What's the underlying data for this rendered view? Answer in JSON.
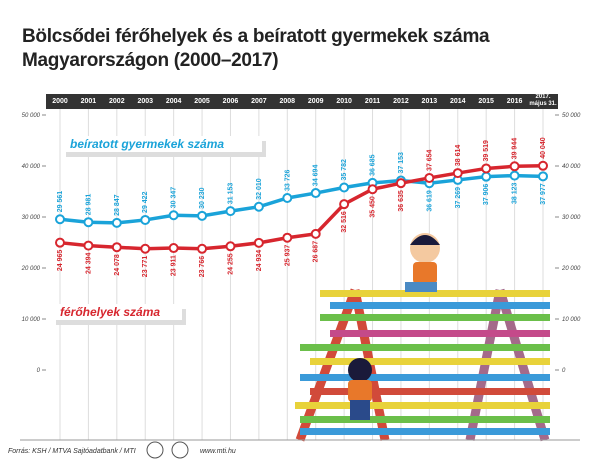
{
  "chart_data": {
    "type": "line",
    "title": "Bölcsődei férőhelyek és a beíratott gyermekek száma",
    "subtitle": "Magyarországon (2000–2017)",
    "categories": [
      "2000",
      "2001",
      "2002",
      "2003",
      "2004",
      "2005",
      "2006",
      "2007",
      "2008",
      "2009",
      "2010",
      "2011",
      "2012",
      "2013",
      "2014",
      "2015",
      "2016",
      "2017. május 31."
    ],
    "series": [
      {
        "name": "beíratott gyermekek száma",
        "color": "#1aa3d9",
        "values": [
          29561,
          28981,
          28847,
          29422,
          30347,
          30230,
          31153,
          32010,
          33726,
          34694,
          35782,
          36685,
          37153,
          36619,
          37269,
          37906,
          38123,
          37977
        ],
        "value_labels": [
          "29 561",
          "28 981",
          "28 847",
          "29 422",
          "30 347",
          "30 230",
          "31 153",
          "32 010",
          "33 726",
          "34 694",
          "35 782",
          "36 685",
          "37 153",
          "36 619",
          "37 269",
          "37 906",
          "38 123",
          "37 977"
        ]
      },
      {
        "name": "férőhelyek száma",
        "color": "#d7262e",
        "values": [
          24965,
          24394,
          24078,
          23771,
          23911,
          23766,
          24255,
          24934,
          25937,
          26687,
          32516,
          35450,
          36635,
          37654,
          38614,
          39519,
          39944,
          40040
        ],
        "value_labels": [
          "24 965",
          "24 394",
          "24 078",
          "23 771",
          "23 911",
          "23 766",
          "24 255",
          "24 934",
          "25 937",
          "26 687",
          "32 516",
          "35 450",
          "36 635",
          "37 654",
          "38 614",
          "39 519",
          "39 944",
          "40 040"
        ]
      }
    ],
    "ylim": [
      0,
      50000
    ],
    "yticks": [
      0,
      {
        "value": 10000,
        "label": "10 000"
      },
      {
        "value": 20000,
        "label": "20 000"
      },
      {
        "value": 30000,
        "label": "30 000"
      },
      {
        "value": 40000,
        "label": "40 000"
      },
      {
        "value": 50000,
        "label": "50 000"
      }
    ],
    "grid": true,
    "source": "Forrás: KSH / MTVA Sajtóadatbank / MTI",
    "website": "www.mti.hu"
  }
}
